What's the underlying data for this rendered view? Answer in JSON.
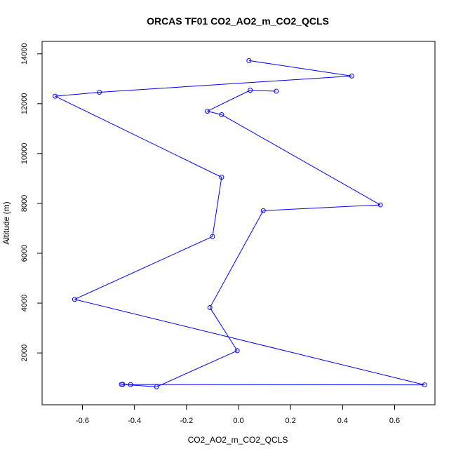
{
  "chart_data": {
    "type": "line",
    "title": "ORCAS TF01 CO2_AO2_m_CO2_QCLS",
    "xlabel": "CO2_AO2_m_CO2_QCLS",
    "ylabel": "Altitude (m)",
    "xlim": [
      -0.755,
      0.755
    ],
    "ylim": [
      -80,
      14500
    ],
    "xticks": [
      -0.6,
      -0.4,
      -0.2,
      0.0,
      0.2,
      0.4,
      0.6
    ],
    "xtick_labels": [
      "-0.6",
      "-0.4",
      "-0.2",
      "0.0",
      "0.2",
      "0.4",
      "0.6"
    ],
    "yticks": [
      2000,
      4000,
      6000,
      8000,
      10000,
      12000,
      14000
    ],
    "ytick_labels": [
      "2000",
      "4000",
      "6000",
      "8000",
      "10000",
      "12000",
      "14000"
    ],
    "grid": false,
    "series": [
      {
        "color": "#0000ff",
        "marker": "open-circle",
        "points": [
          {
            "x": 0.04,
            "y": 13730
          },
          {
            "x": 0.435,
            "y": 13110
          },
          {
            "x": -0.535,
            "y": 12460
          },
          {
            "x": -0.705,
            "y": 12300
          },
          {
            "x": -0.065,
            "y": 9050
          },
          {
            "x": -0.1,
            "y": 6670
          },
          {
            "x": -0.63,
            "y": 4150
          },
          {
            "x": 0.715,
            "y": 720
          },
          {
            "x": -0.415,
            "y": 730
          },
          {
            "x": -0.445,
            "y": 740
          },
          {
            "x": -0.45,
            "y": 740
          },
          {
            "x": -0.315,
            "y": 640
          },
          {
            "x": -0.005,
            "y": 2090
          },
          {
            "x": -0.11,
            "y": 3820
          },
          {
            "x": 0.095,
            "y": 7710
          },
          {
            "x": 0.545,
            "y": 7940
          },
          {
            "x": -0.065,
            "y": 11560
          },
          {
            "x": -0.12,
            "y": 11700
          },
          {
            "x": 0.045,
            "y": 12540
          },
          {
            "x": 0.145,
            "y": 12500
          }
        ]
      }
    ]
  }
}
